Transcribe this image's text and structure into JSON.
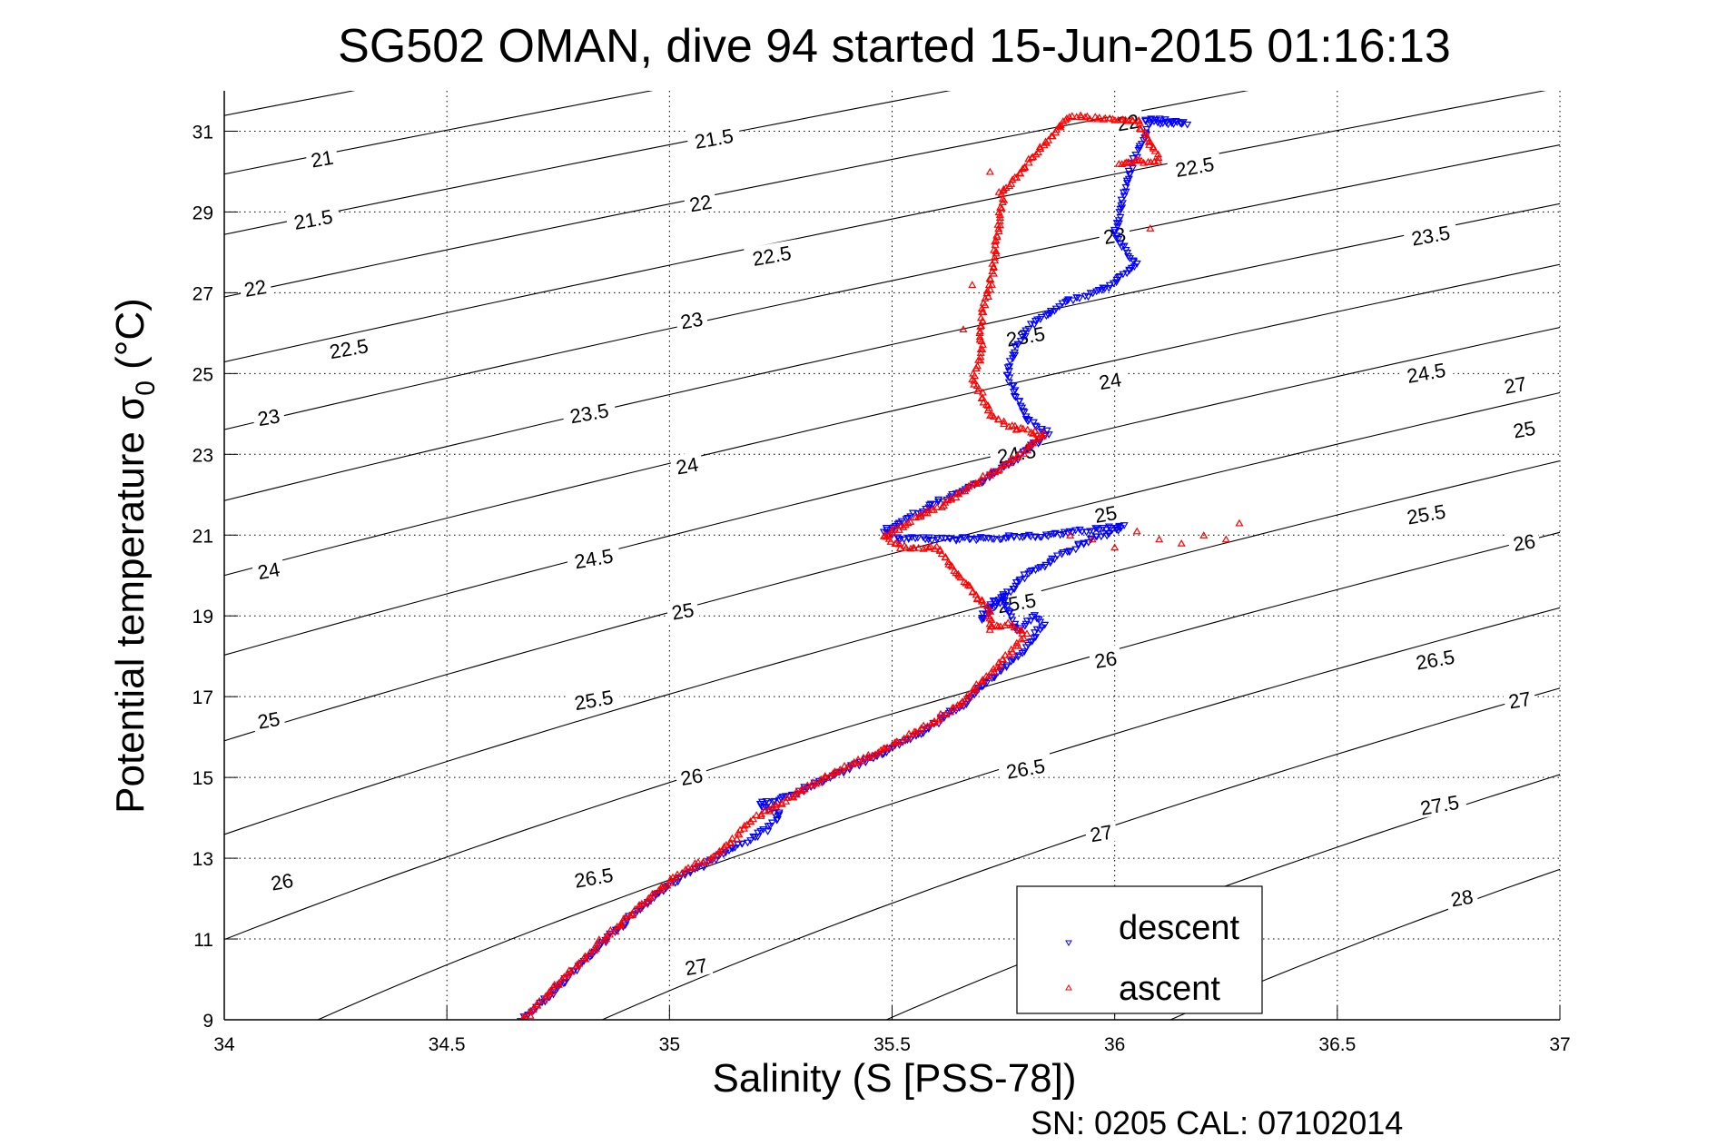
{
  "chart_data": {
    "type": "scatter",
    "title": "SG502 OMAN, dive 94 started 15-Jun-2015 01:16:13",
    "xlabel": "Salinity (S [PSS-78])",
    "ylabel_main": "Potential temperature σ",
    "ylabel_sub": "0",
    "ylabel_unit": " (°C)",
    "footer": "SN: 0205  CAL: 07102014",
    "xlim": [
      34,
      37
    ],
    "ylim": [
      9,
      32
    ],
    "xticks": [
      34,
      34.5,
      35,
      35.5,
      36,
      36.5,
      37
    ],
    "xtick_labels": [
      "34",
      "34.5",
      "35",
      "35.5",
      "36",
      "36.5",
      "37"
    ],
    "yticks": [
      9,
      11,
      13,
      15,
      17,
      19,
      21,
      23,
      25,
      27,
      29,
      31
    ],
    "ytick_labels": [
      "9",
      "11",
      "13",
      "15",
      "17",
      "19",
      "21",
      "23",
      "25",
      "27",
      "29",
      "31"
    ],
    "grid": true,
    "grid_style": "dotted",
    "legend": {
      "placement": "bottom-right",
      "entries": [
        "descent",
        "ascent"
      ]
    },
    "contours": {
      "quantity": "sigma-0 density anomaly (kg/m³)",
      "levels": [
        20.5,
        21,
        21.5,
        22,
        22.5,
        23,
        23.5,
        24,
        24.5,
        25,
        25.5,
        26,
        26.5,
        27,
        27.5,
        28
      ],
      "labels": [
        {
          "text": "21",
          "s": 34.22,
          "t": 30.3
        },
        {
          "text": "21.5",
          "s": 34.2,
          "t": 28.8
        },
        {
          "text": "22",
          "s": 34.07,
          "t": 27.1
        },
        {
          "text": "22.5",
          "s": 34.28,
          "t": 25.6
        },
        {
          "text": "23",
          "s": 34.1,
          "t": 23.9
        },
        {
          "text": "23.5",
          "s": 34.82,
          "t": 24.0
        },
        {
          "text": "24",
          "s": 34.1,
          "t": 20.1
        },
        {
          "text": "24.5",
          "s": 34.83,
          "t": 20.4
        },
        {
          "text": "25",
          "s": 34.1,
          "t": 16.4
        },
        {
          "text": "25.5",
          "s": 34.83,
          "t": 16.9
        },
        {
          "text": "26",
          "s": 34.13,
          "t": 12.4
        },
        {
          "text": "26.5",
          "s": 34.83,
          "t": 12.5
        },
        {
          "text": "27",
          "s": 35.06,
          "t": 10.3
        },
        {
          "text": "21.5",
          "s": 35.1,
          "t": 30.8
        },
        {
          "text": "22",
          "s": 35.07,
          "t": 29.2
        },
        {
          "text": "22.5",
          "s": 35.23,
          "t": 27.9
        },
        {
          "text": "23",
          "s": 35.05,
          "t": 26.3
        },
        {
          "text": "23.5",
          "s": 35.8,
          "t": 25.9
        },
        {
          "text": "24",
          "s": 35.04,
          "t": 22.7
        },
        {
          "text": "24.5",
          "s": 35.78,
          "t": 23.0
        },
        {
          "text": "25",
          "s": 35.03,
          "t": 19.1
        },
        {
          "text": "25.5",
          "s": 35.78,
          "t": 19.3
        },
        {
          "text": "26",
          "s": 35.05,
          "t": 15.0
        },
        {
          "text": "26.5",
          "s": 35.8,
          "t": 15.2
        },
        {
          "text": "27",
          "s": 35.97,
          "t": 13.6
        },
        {
          "text": "22",
          "s": 36.03,
          "t": 31.2
        },
        {
          "text": "22.5",
          "s": 36.18,
          "t": 30.1
        },
        {
          "text": "23",
          "s": 36.0,
          "t": 28.4
        },
        {
          "text": "23.5",
          "s": 36.71,
          "t": 28.4
        },
        {
          "text": "24",
          "s": 35.99,
          "t": 24.8
        },
        {
          "text": "24.5",
          "s": 36.7,
          "t": 25.0
        },
        {
          "text": "25",
          "s": 35.98,
          "t": 21.5
        },
        {
          "text": "25.5",
          "s": 36.7,
          "t": 21.5
        },
        {
          "text": "26",
          "s": 35.98,
          "t": 17.9
        },
        {
          "text": "26.5",
          "s": 36.72,
          "t": 17.9
        },
        {
          "text": "27",
          "s": 36.9,
          "t": 24.7
        },
        {
          "text": "25",
          "s": 36.92,
          "t": 23.6
        },
        {
          "text": "26",
          "s": 36.92,
          "t": 20.8
        },
        {
          "text": "27",
          "s": 36.91,
          "t": 16.9
        },
        {
          "text": "27.5",
          "s": 36.73,
          "t": 14.3
        },
        {
          "text": "28",
          "s": 36.78,
          "t": 12.0
        }
      ]
    },
    "series": [
      {
        "name": "descent",
        "marker": "triangle-down",
        "color": "#0000ff",
        "path": [
          [
            34.67,
            9.0
          ],
          [
            34.75,
            9.8
          ],
          [
            34.85,
            10.9
          ],
          [
            34.95,
            11.9
          ],
          [
            35.02,
            12.5
          ],
          [
            35.12,
            13.1
          ],
          [
            35.22,
            13.7
          ],
          [
            35.25,
            14.1
          ],
          [
            35.2,
            14.3
          ],
          [
            35.28,
            14.6
          ],
          [
            35.4,
            15.2
          ],
          [
            35.48,
            15.6
          ],
          [
            35.58,
            16.2
          ],
          [
            35.66,
            16.8
          ],
          [
            35.74,
            17.6
          ],
          [
            35.8,
            18.2
          ],
          [
            35.84,
            18.8
          ],
          [
            35.82,
            19.0
          ],
          [
            35.78,
            18.6
          ],
          [
            35.75,
            19.5
          ],
          [
            35.72,
            19.3
          ],
          [
            35.7,
            18.9
          ],
          [
            35.8,
            20.0
          ],
          [
            35.88,
            20.5
          ],
          [
            35.95,
            20.9
          ],
          [
            36.02,
            21.2
          ],
          [
            35.85,
            21.0
          ],
          [
            35.7,
            20.9
          ],
          [
            35.6,
            20.9
          ],
          [
            35.52,
            20.9
          ],
          [
            35.48,
            21.1
          ],
          [
            35.52,
            21.3
          ],
          [
            35.55,
            21.5
          ],
          [
            35.62,
            21.9
          ],
          [
            35.7,
            22.3
          ],
          [
            35.78,
            22.9
          ],
          [
            35.85,
            23.5
          ],
          [
            35.8,
            23.9
          ],
          [
            35.78,
            24.4
          ],
          [
            35.76,
            25.0
          ],
          [
            35.78,
            25.7
          ],
          [
            35.82,
            26.3
          ],
          [
            35.9,
            26.8
          ],
          [
            35.98,
            27.1
          ],
          [
            36.05,
            27.7
          ],
          [
            36.0,
            28.4
          ],
          [
            36.03,
            29.9
          ],
          [
            36.08,
            31.2
          ],
          [
            36.16,
            31.2
          ],
          [
            36.06,
            31.3
          ]
        ]
      },
      {
        "name": "ascent",
        "marker": "triangle-up",
        "color": "#ff0000",
        "path": [
          [
            34.67,
            9.0
          ],
          [
            34.75,
            9.9
          ],
          [
            34.85,
            11.0
          ],
          [
            34.95,
            11.95
          ],
          [
            35.02,
            12.6
          ],
          [
            35.12,
            13.2
          ],
          [
            35.18,
            13.9
          ],
          [
            35.22,
            14.2
          ],
          [
            35.3,
            14.7
          ],
          [
            35.4,
            15.3
          ],
          [
            35.48,
            15.7
          ],
          [
            35.58,
            16.3
          ],
          [
            35.66,
            16.9
          ],
          [
            35.73,
            17.7
          ],
          [
            35.78,
            18.3
          ],
          [
            35.8,
            18.6
          ],
          [
            35.76,
            18.8
          ],
          [
            35.72,
            18.7
          ],
          [
            35.72,
            18.9
          ],
          [
            35.72,
            19.1
          ],
          [
            35.6,
            20.7
          ],
          [
            35.52,
            20.7
          ],
          [
            35.48,
            21.0
          ],
          [
            35.52,
            21.2
          ],
          [
            35.55,
            21.4
          ],
          [
            35.62,
            21.8
          ],
          [
            35.7,
            22.4
          ],
          [
            35.78,
            22.9
          ],
          [
            35.84,
            23.5
          ],
          [
            35.76,
            23.7
          ],
          [
            35.72,
            24.0
          ],
          [
            35.7,
            24.5
          ],
          [
            35.68,
            24.9
          ],
          [
            35.7,
            25.5
          ],
          [
            35.7,
            26.5
          ],
          [
            35.72,
            27.1
          ],
          [
            35.75,
            29.5
          ],
          [
            35.78,
            29.9
          ],
          [
            35.9,
            31.4
          ],
          [
            35.98,
            31.3
          ],
          [
            36.05,
            31.3
          ],
          [
            36.1,
            30.3
          ],
          [
            36.0,
            30.2
          ]
        ],
        "outliers": [
          [
            35.9,
            21.0
          ],
          [
            35.95,
            20.9
          ],
          [
            36.05,
            21.1
          ],
          [
            36.1,
            20.9
          ],
          [
            36.15,
            20.8
          ],
          [
            36.2,
            21.0
          ],
          [
            36.28,
            21.3
          ],
          [
            36.25,
            20.9
          ],
          [
            36.0,
            20.7
          ],
          [
            35.68,
            27.2
          ],
          [
            35.66,
            26.1
          ],
          [
            36.08,
            28.6
          ],
          [
            36.05,
            30.3
          ],
          [
            35.72,
            30.0
          ],
          [
            35.74,
            29.5
          ]
        ]
      }
    ]
  }
}
